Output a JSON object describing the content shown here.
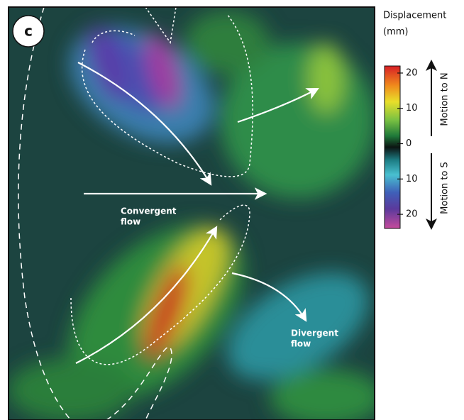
{
  "panel_label": "c",
  "convergent_label": [
    "Convergent",
    "flow"
  ],
  "divergent_label": [
    "Divergent",
    "flow"
  ],
  "colorbar": {
    "title": [
      "Displacement",
      "(mm)"
    ],
    "lim": [
      -24,
      22
    ],
    "ticks": [
      20,
      10,
      0,
      {
        "value": -10,
        "label": "10"
      },
      {
        "value": -20,
        "label": "20"
      }
    ],
    "north_label": "Motion to N",
    "south_label": "Motion to S"
  }
}
